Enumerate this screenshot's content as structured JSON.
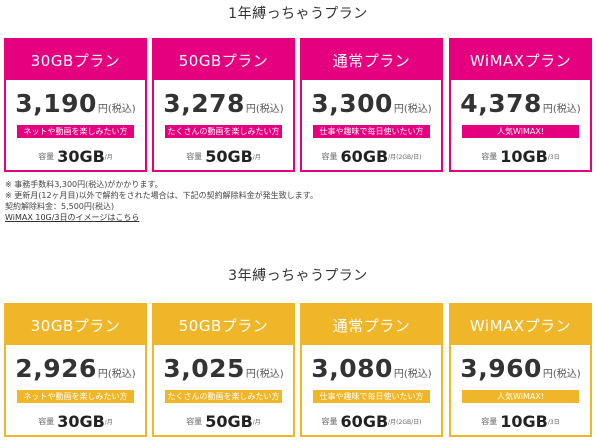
{
  "sections": [
    {
      "title": "1年縛っちゃうプラン",
      "accent": "#e5007f",
      "plans": [
        {
          "name": "30GBプラン",
          "price": "3,190",
          "tax": "円(税込)",
          "tagline": "ネットや動画を楽しみたい方",
          "cap_label": "容量",
          "cap_value": "30GB",
          "cap_note": "/月"
        },
        {
          "name": "50GBプラン",
          "price": "3,278",
          "tax": "円(税込)",
          "tagline": "たくさんの動画を楽しみたい方",
          "cap_label": "容量",
          "cap_value": "50GB",
          "cap_note": "/月"
        },
        {
          "name": "通常プラン",
          "price": "3,300",
          "tax": "円(税込)",
          "tagline": "仕事や趣味で毎日使いたい方",
          "cap_label": "容量",
          "cap_value": "60GB",
          "cap_note": "/月(2GB/日)"
        },
        {
          "name": "WiMAXプラン",
          "price": "4,378",
          "tax": "円(税込)",
          "tagline": "人気WiMAX!",
          "cap_label": "容量",
          "cap_value": "10GB",
          "cap_note": "/3日"
        }
      ]
    },
    {
      "title": "3年縛っちゃうプラン",
      "accent": "#f0b62a",
      "plans": [
        {
          "name": "30GBプラン",
          "price": "2,926",
          "tax": "円(税込)",
          "tagline": "ネットや動画を楽しみたい方",
          "cap_label": "容量",
          "cap_value": "30GB",
          "cap_note": "/月"
        },
        {
          "name": "50GBプラン",
          "price": "3,025",
          "tax": "円(税込)",
          "tagline": "たくさんの動画を楽しみたい方",
          "cap_label": "容量",
          "cap_value": "50GB",
          "cap_note": "/月"
        },
        {
          "name": "通常プラン",
          "price": "3,080",
          "tax": "円(税込)",
          "tagline": "仕事や趣味で毎日使いたい方",
          "cap_label": "容量",
          "cap_value": "60GB",
          "cap_note": "/月(2GB/日)"
        },
        {
          "name": "WiMAXプラン",
          "price": "3,960",
          "tax": "円(税込)",
          "tagline": "人気WiMAX!",
          "cap_label": "容量",
          "cap_value": "10GB",
          "cap_note": "/3日"
        }
      ]
    }
  ],
  "notes": {
    "fee": "※ 事務手数料3,300円(税込)がかかります。",
    "cancel": "※ 更新月(12ヶ月目)以外で解約をされた場合は、下記の契約解除料金が発生致します。",
    "cancel_fee": "契約解除料金：5,500円(税込)",
    "wimax_link": "WiMAX 10G/3日のイメージはこちら"
  }
}
